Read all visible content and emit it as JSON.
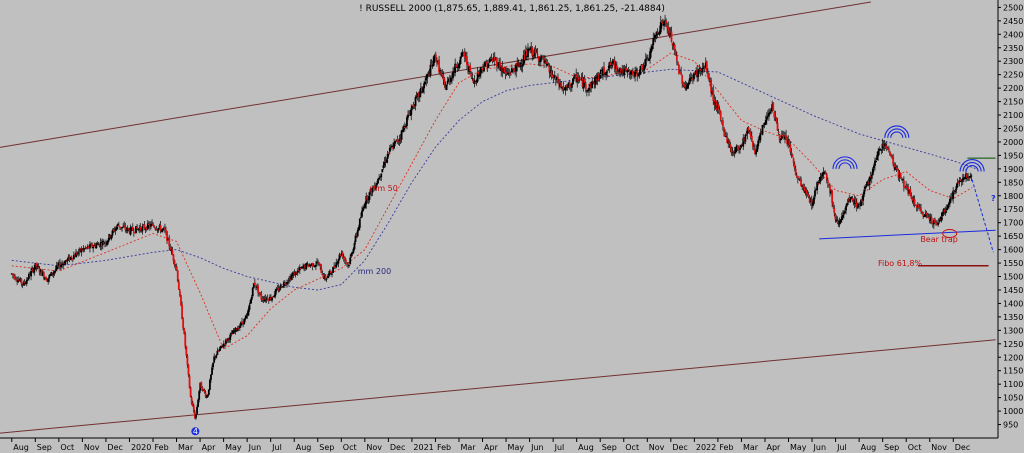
{
  "chart_data": {
    "type": "candlestick",
    "title": "! RUSSELL 2000 (1,875.65, 1,889.41, 1,861.25, 1,861.25, -21.4884)",
    "xlabel": "",
    "ylabel": "",
    "ylim": [
      900,
      2520
    ],
    "y_ticks": [
      950,
      1000,
      1050,
      1100,
      1150,
      1200,
      1250,
      1300,
      1350,
      1400,
      1450,
      1500,
      1550,
      1600,
      1650,
      1700,
      1750,
      1800,
      1850,
      1900,
      1950,
      2000,
      2050,
      2100,
      2150,
      2200,
      2250,
      2300,
      2350,
      2400,
      2450,
      2500
    ],
    "x_ticks": [
      "Aug",
      "Sep",
      "Oct",
      "Nov",
      "Dec",
      "2020",
      "Feb",
      "Mar",
      "Apr",
      "May",
      "Jun",
      "Jul",
      "Aug",
      "Sep",
      "Oct",
      "Nov",
      "Dec",
      "2021",
      "Feb",
      "Mar",
      "Apr",
      "May",
      "Jun",
      "Jul",
      "Aug",
      "Sep",
      "Oct",
      "Nov",
      "Dec",
      "2022",
      "Feb",
      "Mar",
      "Apr",
      "May",
      "Jun",
      "Jul",
      "Aug",
      "Sep",
      "Oct",
      "Nov",
      "Dec"
    ],
    "price_path": [
      {
        "m": 0,
        "v": 1510
      },
      {
        "m": 0.5,
        "v": 1470
      },
      {
        "m": 1,
        "v": 1540
      },
      {
        "m": 1.5,
        "v": 1490
      },
      {
        "m": 2,
        "v": 1540
      },
      {
        "m": 3,
        "v": 1600
      },
      {
        "m": 4,
        "v": 1630
      },
      {
        "m": 4.5,
        "v": 1690
      },
      {
        "m": 5,
        "v": 1670
      },
      {
        "m": 6,
        "v": 1690
      },
      {
        "m": 6.5,
        "v": 1670
      },
      {
        "m": 7,
        "v": 1530
      },
      {
        "m": 7.3,
        "v": 1300
      },
      {
        "m": 7.6,
        "v": 1050
      },
      {
        "m": 7.8,
        "v": 970
      },
      {
        "m": 8,
        "v": 1100
      },
      {
        "m": 8.3,
        "v": 1050
      },
      {
        "m": 8.6,
        "v": 1200
      },
      {
        "m": 9,
        "v": 1250
      },
      {
        "m": 9.5,
        "v": 1300
      },
      {
        "m": 10,
        "v": 1350
      },
      {
        "m": 10.3,
        "v": 1480
      },
      {
        "m": 10.6,
        "v": 1420
      },
      {
        "m": 11,
        "v": 1420
      },
      {
        "m": 11.5,
        "v": 1470
      },
      {
        "m": 12,
        "v": 1510
      },
      {
        "m": 12.5,
        "v": 1540
      },
      {
        "m": 13,
        "v": 1550
      },
      {
        "m": 13.3,
        "v": 1490
      },
      {
        "m": 13.6,
        "v": 1520
      },
      {
        "m": 14,
        "v": 1590
      },
      {
        "m": 14.3,
        "v": 1540
      },
      {
        "m": 14.6,
        "v": 1640
      },
      {
        "m": 15,
        "v": 1780
      },
      {
        "m": 15.5,
        "v": 1850
      },
      {
        "m": 16,
        "v": 1960
      },
      {
        "m": 16.5,
        "v": 2020
      },
      {
        "m": 17,
        "v": 2130
      },
      {
        "m": 17.4,
        "v": 2190
      },
      {
        "m": 17.7,
        "v": 2250
      },
      {
        "m": 18,
        "v": 2320
      },
      {
        "m": 18.4,
        "v": 2200
      },
      {
        "m": 18.8,
        "v": 2270
      },
      {
        "m": 19.2,
        "v": 2330
      },
      {
        "m": 19.6,
        "v": 2220
      },
      {
        "m": 20,
        "v": 2280
      },
      {
        "m": 20.5,
        "v": 2310
      },
      {
        "m": 21,
        "v": 2250
      },
      {
        "m": 21.5,
        "v": 2280
      },
      {
        "m": 22,
        "v": 2340
      },
      {
        "m": 22.5,
        "v": 2310
      },
      {
        "m": 23,
        "v": 2240
      },
      {
        "m": 23.5,
        "v": 2190
      },
      {
        "m": 24,
        "v": 2240
      },
      {
        "m": 24.5,
        "v": 2200
      },
      {
        "m": 25,
        "v": 2250
      },
      {
        "m": 25.5,
        "v": 2290
      },
      {
        "m": 26,
        "v": 2260
      },
      {
        "m": 26.5,
        "v": 2250
      },
      {
        "m": 27,
        "v": 2300
      },
      {
        "m": 27.4,
        "v": 2410
      },
      {
        "m": 27.7,
        "v": 2450
      },
      {
        "m": 28,
        "v": 2390
      },
      {
        "m": 28.3,
        "v": 2280
      },
      {
        "m": 28.6,
        "v": 2200
      },
      {
        "m": 29,
        "v": 2250
      },
      {
        "m": 29.5,
        "v": 2280
      },
      {
        "m": 29.8,
        "v": 2160
      },
      {
        "m": 30,
        "v": 2120
      },
      {
        "m": 30.3,
        "v": 2030
      },
      {
        "m": 30.6,
        "v": 1960
      },
      {
        "m": 31,
        "v": 1990
      },
      {
        "m": 31.3,
        "v": 2050
      },
      {
        "m": 31.6,
        "v": 1960
      },
      {
        "m": 32,
        "v": 2080
      },
      {
        "m": 32.3,
        "v": 2140
      },
      {
        "m": 32.6,
        "v": 2020
      },
      {
        "m": 33,
        "v": 2000
      },
      {
        "m": 33.3,
        "v": 1880
      },
      {
        "m": 33.6,
        "v": 1830
      },
      {
        "m": 34,
        "v": 1770
      },
      {
        "m": 34.2,
        "v": 1840
      },
      {
        "m": 34.5,
        "v": 1900
      },
      {
        "m": 34.8,
        "v": 1810
      },
      {
        "m": 35,
        "v": 1700
      },
      {
        "m": 35.3,
        "v": 1720
      },
      {
        "m": 35.6,
        "v": 1790
      },
      {
        "m": 36,
        "v": 1760
      },
      {
        "m": 36.3,
        "v": 1830
      },
      {
        "m": 36.6,
        "v": 1900
      },
      {
        "m": 37,
        "v": 2000
      },
      {
        "m": 37.3,
        "v": 1960
      },
      {
        "m": 37.6,
        "v": 1890
      },
      {
        "m": 38,
        "v": 1830
      },
      {
        "m": 38.3,
        "v": 1780
      },
      {
        "m": 38.6,
        "v": 1740
      },
      {
        "m": 39,
        "v": 1720
      },
      {
        "m": 39.3,
        "v": 1690
      },
      {
        "m": 39.6,
        "v": 1740
      },
      {
        "m": 40,
        "v": 1810
      },
      {
        "m": 40.3,
        "v": 1860
      },
      {
        "m": 40.6,
        "v": 1880
      },
      {
        "m": 40.8,
        "v": 1861
      }
    ],
    "series": [
      {
        "name": "mm 50",
        "color": "#e03020",
        "style": "dotted",
        "points": [
          {
            "m": 0,
            "v": 1540
          },
          {
            "m": 2,
            "v": 1520
          },
          {
            "m": 4,
            "v": 1590
          },
          {
            "m": 6,
            "v": 1660
          },
          {
            "m": 7,
            "v": 1630
          },
          {
            "m": 8,
            "v": 1440
          },
          {
            "m": 9,
            "v": 1230
          },
          {
            "m": 10,
            "v": 1280
          },
          {
            "m": 11,
            "v": 1380
          },
          {
            "m": 12,
            "v": 1450
          },
          {
            "m": 13,
            "v": 1490
          },
          {
            "m": 14,
            "v": 1530
          },
          {
            "m": 15,
            "v": 1600
          },
          {
            "m": 16,
            "v": 1760
          },
          {
            "m": 17,
            "v": 1920
          },
          {
            "m": 18,
            "v": 2080
          },
          {
            "m": 19,
            "v": 2220
          },
          {
            "m": 20,
            "v": 2270
          },
          {
            "m": 21,
            "v": 2280
          },
          {
            "m": 22,
            "v": 2290
          },
          {
            "m": 23,
            "v": 2280
          },
          {
            "m": 24,
            "v": 2240
          },
          {
            "m": 25,
            "v": 2240
          },
          {
            "m": 26,
            "v": 2260
          },
          {
            "m": 27,
            "v": 2270
          },
          {
            "m": 28,
            "v": 2330
          },
          {
            "m": 29,
            "v": 2300
          },
          {
            "m": 30,
            "v": 2190
          },
          {
            "m": 31,
            "v": 2080
          },
          {
            "m": 32,
            "v": 2040
          },
          {
            "m": 33,
            "v": 2010
          },
          {
            "m": 34,
            "v": 1920
          },
          {
            "m": 35,
            "v": 1820
          },
          {
            "m": 36,
            "v": 1800
          },
          {
            "m": 37,
            "v": 1860
          },
          {
            "m": 38,
            "v": 1890
          },
          {
            "m": 39,
            "v": 1820
          },
          {
            "m": 40,
            "v": 1790
          },
          {
            "m": 40.8,
            "v": 1830
          }
        ]
      },
      {
        "name": "mm 200",
        "color": "#3838a0",
        "style": "dotted",
        "points": [
          {
            "m": 0,
            "v": 1560
          },
          {
            "m": 2,
            "v": 1540
          },
          {
            "m": 4,
            "v": 1560
          },
          {
            "m": 6,
            "v": 1590
          },
          {
            "m": 7,
            "v": 1600
          },
          {
            "m": 8,
            "v": 1570
          },
          {
            "m": 9,
            "v": 1530
          },
          {
            "m": 10,
            "v": 1500
          },
          {
            "m": 11,
            "v": 1480
          },
          {
            "m": 12,
            "v": 1460
          },
          {
            "m": 13,
            "v": 1450
          },
          {
            "m": 14,
            "v": 1470
          },
          {
            "m": 15,
            "v": 1560
          },
          {
            "m": 16,
            "v": 1700
          },
          {
            "m": 17,
            "v": 1850
          },
          {
            "m": 18,
            "v": 1980
          },
          {
            "m": 19,
            "v": 2080
          },
          {
            "m": 20,
            "v": 2150
          },
          {
            "m": 21,
            "v": 2190
          },
          {
            "m": 22,
            "v": 2210
          },
          {
            "m": 24,
            "v": 2230
          },
          {
            "m": 26,
            "v": 2250
          },
          {
            "m": 28,
            "v": 2270
          },
          {
            "m": 30,
            "v": 2260
          },
          {
            "m": 32,
            "v": 2180
          },
          {
            "m": 34,
            "v": 2100
          },
          {
            "m": 36,
            "v": 2030
          },
          {
            "m": 38,
            "v": 1980
          },
          {
            "m": 40,
            "v": 1930
          },
          {
            "m": 41,
            "v": 1900
          }
        ]
      }
    ],
    "trend_lines": [
      {
        "name": "upper-channel",
        "color": "#703030",
        "from": {
          "m": -0.5,
          "v": 1980
        },
        "to": {
          "m": 36.5,
          "v": 2520
        }
      },
      {
        "name": "lower-channel",
        "color": "#703030",
        "from": {
          "m": -0.5,
          "v": 918
        },
        "to": {
          "m": 41.8,
          "v": 1265
        }
      },
      {
        "name": "neckline",
        "color": "#1a2ae0",
        "from": {
          "m": 34.3,
          "v": 1640
        },
        "to": {
          "m": 41.8,
          "v": 1672
        }
      },
      {
        "name": "fibo-line",
        "color": "#8b1010",
        "from": {
          "m": 38.5,
          "v": 1540
        },
        "to": {
          "m": 41.5,
          "v": 1540
        }
      },
      {
        "name": "resistance-line",
        "color": "#005000",
        "from": {
          "m": 40.6,
          "v": 1940
        },
        "to": {
          "m": 41.8,
          "v": 1940
        }
      },
      {
        "name": "projection-line",
        "color": "#1a2ae0",
        "style": "dashed",
        "from": {
          "m": 40.8,
          "v": 1860
        },
        "to": {
          "m": 41.7,
          "v": 1590
        }
      }
    ],
    "head_shoulders_arcs": [
      {
        "name": "left-shoulder",
        "m": 35.4,
        "v": 1900
      },
      {
        "name": "head",
        "m": 37.6,
        "v": 2015
      },
      {
        "name": "right-shoulder",
        "m": 40.8,
        "v": 1890
      }
    ],
    "annotations": [
      {
        "name": "mm50-label",
        "text": "mm 50",
        "color": "#c01010",
        "m": 15.2,
        "v": 1818
      },
      {
        "name": "mm200-label",
        "text": "mm 200",
        "color": "#2a2a80",
        "m": 14.7,
        "v": 1510
      },
      {
        "name": "bear-trap-label",
        "text": "Bear trap",
        "color": "#c01010",
        "m": 38.6,
        "v": 1628
      },
      {
        "name": "fibo-label",
        "text": "Fibo 61,8%",
        "color": "#c01010",
        "m": 36.8,
        "v": 1540
      },
      {
        "name": "question-mark",
        "text": "?",
        "color": "#1a2ae0",
        "m": 41.6,
        "v": 1780
      },
      {
        "name": "wave-label",
        "text": "4",
        "color": "#1a2ae0",
        "m": 7.8,
        "v": 925
      }
    ]
  }
}
